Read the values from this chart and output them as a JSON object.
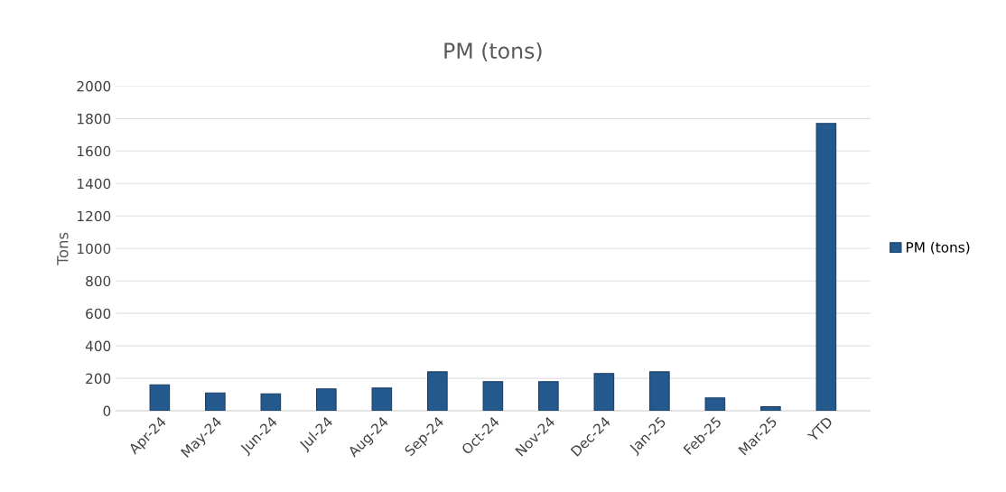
{
  "chart_data": {
    "type": "bar",
    "title": "PM (tons)",
    "ylabel": "Tons",
    "categories": [
      "Apr-24",
      "May-24",
      "Jun-24",
      "Jul-24",
      "Aug-24",
      "Sep-24",
      "Oct-24",
      "Nov-24",
      "Dec-24",
      "Jan-25",
      "Feb-25",
      "Mar-25",
      "YTD"
    ],
    "series": [
      {
        "name": "PM (tons)",
        "color": "#23598c",
        "values": [
          160,
          110,
          105,
          135,
          140,
          240,
          180,
          180,
          230,
          240,
          80,
          25,
          1770
        ]
      }
    ],
    "ylim": [
      0,
      2000
    ],
    "yticks": [
      0,
      200,
      400,
      600,
      800,
      1000,
      1200,
      1400,
      1600,
      1800,
      2000
    ],
    "grid": "y",
    "legend": "right"
  }
}
